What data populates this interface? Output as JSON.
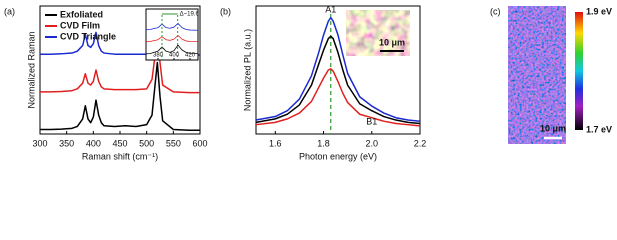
{
  "chart_data": [
    {
      "type": "line",
      "panel": "(a)",
      "xlabel": "Raman shift (cm⁻¹)",
      "ylabel": "Normalized Raman",
      "xlim": [
        300,
        600
      ],
      "xticks": [
        300,
        350,
        400,
        450,
        500,
        550,
        600
      ],
      "ylim": [
        0,
        3.4
      ],
      "x": [
        300,
        320,
        340,
        360,
        370,
        380,
        385,
        390,
        395,
        400,
        405,
        410,
        415,
        420,
        440,
        460,
        480,
        500,
        510,
        515,
        520,
        525,
        530,
        550,
        580,
        600
      ],
      "series": [
        {
          "name": "Exfoliated",
          "color": "#000000",
          "values": [
            0.12,
            0.12,
            0.13,
            0.15,
            0.2,
            0.4,
            0.75,
            0.4,
            0.3,
            0.45,
            0.9,
            0.5,
            0.3,
            0.22,
            0.2,
            0.22,
            0.2,
            0.25,
            0.5,
            1.2,
            1.9,
            1.0,
            0.35,
            0.12,
            0.1,
            0.1
          ]
        },
        {
          "name": "CVD Film",
          "color": "#e02020",
          "values": [
            1.12,
            1.12,
            1.13,
            1.15,
            1.2,
            1.35,
            1.6,
            1.35,
            1.3,
            1.4,
            1.7,
            1.4,
            1.25,
            1.2,
            1.18,
            1.18,
            1.18,
            1.2,
            1.45,
            2.0,
            2.5,
            1.9,
            1.3,
            1.12,
            1.1,
            1.1
          ]
        },
        {
          "name": "CVD Triangle",
          "color": "#1a2ad0",
          "values": [
            2.12,
            2.12,
            2.13,
            2.15,
            2.2,
            2.35,
            2.65,
            2.35,
            2.3,
            2.4,
            2.7,
            2.35,
            2.2,
            2.15,
            2.12,
            2.12,
            2.12,
            2.12,
            2.12,
            2.12,
            2.13,
            2.12,
            2.12,
            2.11,
            2.1,
            2.1
          ]
        }
      ],
      "inset": {
        "xlim": [
          365,
          430
        ],
        "xticks": [
          380,
          400,
          420
        ],
        "lines": [
          385,
          404.6
        ],
        "annotation": "Δ~19.6"
      }
    },
    {
      "type": "line",
      "panel": "(b)",
      "xlabel": "Photon energy (eV)",
      "ylabel": "Normalized PL (a.u.)",
      "xlim": [
        1.52,
        2.2
      ],
      "xticks": [
        1.6,
        1.8,
        {
          "value": 2,
          "label": "2.0"
        },
        2.2
      ],
      "ylim": [
        0,
        1.1
      ],
      "x": [
        1.52,
        1.6,
        1.65,
        1.7,
        1.75,
        1.78,
        1.8,
        1.82,
        1.83,
        1.84,
        1.86,
        1.88,
        1.9,
        1.95,
        2.0,
        2.05,
        2.1,
        2.15,
        2.2
      ],
      "series": [
        {
          "color": "#1a2ad0",
          "values": [
            0.12,
            0.15,
            0.2,
            0.3,
            0.5,
            0.7,
            0.85,
            0.97,
            1.0,
            0.97,
            0.85,
            0.68,
            0.52,
            0.32,
            0.24,
            0.18,
            0.14,
            0.12,
            0.11
          ]
        },
        {
          "color": "#000000",
          "values": [
            0.1,
            0.13,
            0.17,
            0.25,
            0.42,
            0.6,
            0.72,
            0.82,
            0.84,
            0.82,
            0.7,
            0.55,
            0.42,
            0.26,
            0.2,
            0.15,
            0.12,
            0.1,
            0.09
          ]
        },
        {
          "color": "#e02020",
          "values": [
            0.08,
            0.1,
            0.13,
            0.18,
            0.28,
            0.4,
            0.48,
            0.55,
            0.56,
            0.54,
            0.45,
            0.35,
            0.27,
            0.17,
            0.14,
            0.11,
            0.09,
            0.08,
            0.07
          ]
        }
      ],
      "markers": [
        {
          "label": "A1",
          "x": 1.83
        },
        {
          "label": "B1",
          "x": 2.0
        }
      ],
      "reference_line": 1.83,
      "inset_scale_bar": "10 μm"
    },
    {
      "type": "map",
      "panel": "(c)",
      "colorbar_labels": [
        "1.9 eV",
        "1.7 eV"
      ],
      "scale_bar": "10 μm"
    }
  ]
}
